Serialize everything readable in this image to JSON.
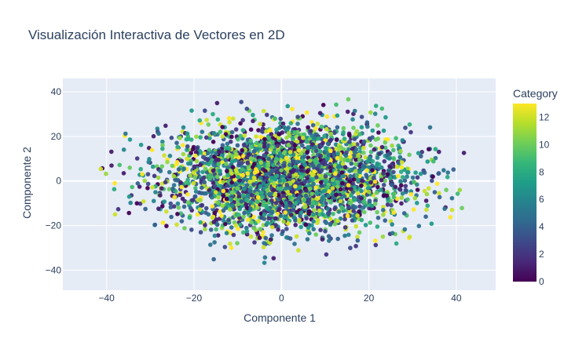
{
  "chart_data": {
    "type": "scatter",
    "title": "Visualización Interactiva de Vectores en 2D",
    "xlabel": "Componente 1",
    "ylabel": "Componente 2",
    "xlim": [
      -50,
      49
    ],
    "ylim": [
      -49,
      46
    ],
    "xticks": [
      -40,
      -20,
      0,
      20,
      40
    ],
    "yticks": [
      -40,
      -20,
      0,
      20,
      40
    ],
    "grid": true,
    "colorbar": {
      "title": "Category",
      "range": [
        0,
        13
      ],
      "ticks": [
        0,
        2,
        4,
        6,
        8,
        10,
        12
      ],
      "colorscale": [
        "#440154",
        "#482878",
        "#3e4989",
        "#31688e",
        "#26828e",
        "#1f9e89",
        "#35b779",
        "#6ece58",
        "#b5de2b",
        "#fde725"
      ]
    },
    "series": [
      {
        "points_note": "",
        "x": [],
        "y": [],
        "category": []
      }
    ]
  }
}
